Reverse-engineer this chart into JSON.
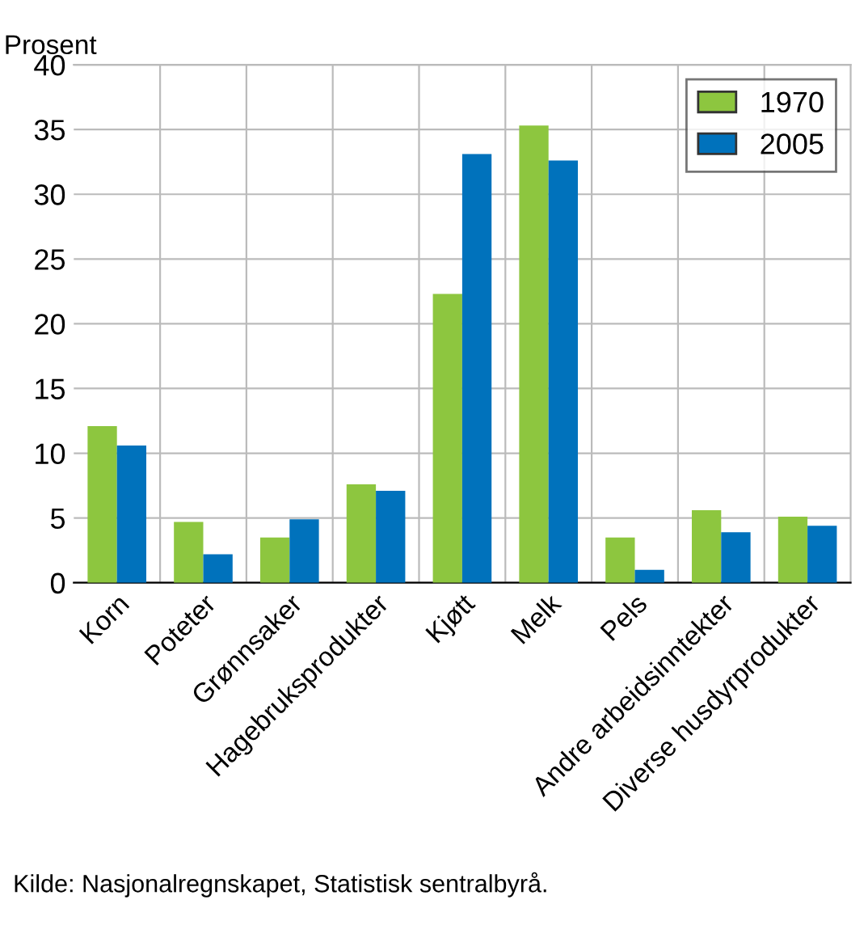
{
  "chart_data": {
    "type": "bar",
    "ylabel": "Prosent",
    "categories": [
      "Korn",
      "Poteter",
      "Grønnsaker",
      "Hagebruksprodukter",
      "Kjøtt",
      "Melk",
      "Pels",
      "Andre arbeidsinntekter",
      "Diverse husdyrprodukter"
    ],
    "series": [
      {
        "name": "1970",
        "color": "#8dc63f",
        "values": [
          12.1,
          4.7,
          3.5,
          7.6,
          22.3,
          35.3,
          3.5,
          5.6,
          5.1
        ]
      },
      {
        "name": "2005",
        "color": "#0072bc",
        "values": [
          10.6,
          2.2,
          4.9,
          7.1,
          33.1,
          32.6,
          1.0,
          3.9,
          4.4
        ]
      }
    ],
    "ylim": [
      0,
      40
    ],
    "yticks": [
      0,
      5,
      10,
      15,
      20,
      25,
      30,
      35,
      40
    ],
    "grid": true,
    "legend": "top right",
    "annotations": [
      "Kilde: Nasjonalregnskapet, Statistisk sentralbyrå."
    ]
  }
}
